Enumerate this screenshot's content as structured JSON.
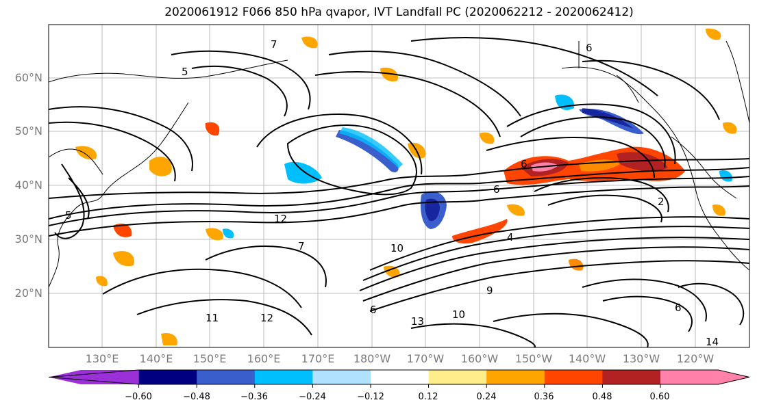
{
  "title": "2020061912 F066 850 hPa qvapor, IVT Landfall PC (2020062212 - 2020062412)",
  "lat_labels": [
    "60°N",
    "50°N",
    "40°N",
    "30°N",
    "20°N"
  ],
  "lon_labels": [
    "130°E",
    "140°E",
    "150°E",
    "160°E",
    "170°E",
    "180°W",
    "170°W",
    "160°W",
    "150°W",
    "140°W",
    "130°W",
    "120°W"
  ],
  "colorbar": {
    "ticks": [
      "−0.60",
      "−0.48",
      "−0.36",
      "−0.24",
      "−0.12",
      "0.12",
      "0.24",
      "0.36",
      "0.48",
      "0.60"
    ],
    "colors": [
      "#9b30d9",
      "#000080",
      "#3a5fcd",
      "#00bfff",
      "#b0e2ff",
      "#ffffff",
      "#ffec8b",
      "#ffa500",
      "#ff4500",
      "#b22222",
      "#ff82ab"
    ]
  },
  "colors": {
    "contour": "#000000",
    "land_outline": "#000000",
    "grid": "#aaaaaa"
  }
}
